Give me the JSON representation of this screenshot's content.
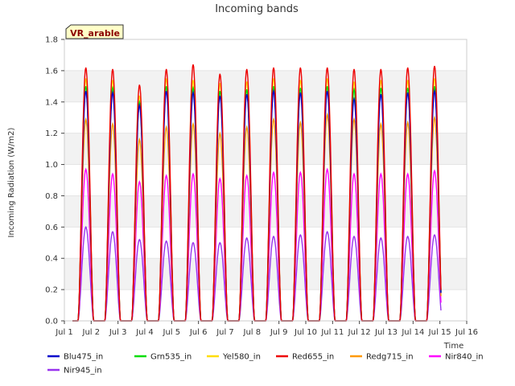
{
  "chart_data": {
    "type": "line",
    "title": "Incoming bands",
    "site_label": "VR_arable",
    "xlabel": "Time",
    "ylabel": "Incoming Radiation (W/m2)",
    "x_range_days": [
      1,
      16
    ],
    "ylim": [
      0.0,
      1.8
    ],
    "x_ticks": [
      "Jul 1",
      "Jul 2",
      "Jul 3",
      "Jul 4",
      "Jul 5",
      "Jul 6",
      "Jul 7",
      "Jul 8",
      "Jul 9",
      "Jul 10",
      "Jul 11",
      "Jul 12",
      "Jul 13",
      "Jul 14",
      "Jul 15",
      "Jul 16"
    ],
    "y_ticks": [
      "0.0",
      "0.2",
      "0.4",
      "0.6",
      "0.8",
      "1.0",
      "1.2",
      "1.4",
      "1.6",
      "1.8"
    ],
    "grid": "horizontal bands",
    "legend_position": "bottom",
    "peak_days": [
      1.8,
      2.8,
      3.8,
      4.8,
      5.8,
      6.8,
      7.8,
      8.8,
      9.8,
      10.8,
      11.8,
      12.8,
      13.8,
      14.8
    ],
    "series": [
      {
        "name": "Blu475_in",
        "color": "#0000cc",
        "daily_peaks": [
          1.47,
          1.46,
          1.38,
          1.47,
          1.46,
          1.44,
          1.45,
          1.47,
          1.46,
          1.47,
          1.42,
          1.45,
          1.46,
          1.47
        ]
      },
      {
        "name": "Grn535_in",
        "color": "#00dd00",
        "daily_peaks": [
          1.5,
          1.49,
          1.4,
          1.5,
          1.49,
          1.47,
          1.48,
          1.5,
          1.49,
          1.5,
          1.48,
          1.49,
          1.49,
          1.5
        ]
      },
      {
        "name": "Yel580_in",
        "color": "#ffdd00",
        "daily_peaks": [
          1.55,
          1.54,
          1.44,
          1.55,
          1.54,
          1.52,
          1.53,
          1.55,
          1.54,
          1.55,
          1.53,
          1.54,
          1.54,
          1.55
        ]
      },
      {
        "name": "Red655_in",
        "color": "#ee0000",
        "daily_peaks": [
          1.62,
          1.61,
          1.51,
          1.61,
          1.64,
          1.58,
          1.61,
          1.62,
          1.62,
          1.62,
          1.61,
          1.61,
          1.62,
          1.63
        ]
      },
      {
        "name": "Redg715_in",
        "color": "#ff9900",
        "daily_peaks": [
          1.29,
          1.26,
          1.16,
          1.24,
          1.26,
          1.2,
          1.24,
          1.29,
          1.27,
          1.32,
          1.29,
          1.26,
          1.27,
          1.3
        ]
      },
      {
        "name": "Nir840_in",
        "color": "#ff00ff",
        "daily_peaks": [
          0.97,
          0.94,
          0.89,
          0.93,
          0.94,
          0.91,
          0.93,
          0.95,
          0.95,
          0.97,
          0.94,
          0.94,
          0.94,
          0.96
        ]
      },
      {
        "name": "Nir945_in",
        "color": "#9933ee",
        "daily_peaks": [
          0.6,
          0.57,
          0.52,
          0.51,
          0.5,
          0.5,
          0.53,
          0.54,
          0.55,
          0.57,
          0.54,
          0.53,
          0.54,
          0.55
        ]
      }
    ]
  }
}
